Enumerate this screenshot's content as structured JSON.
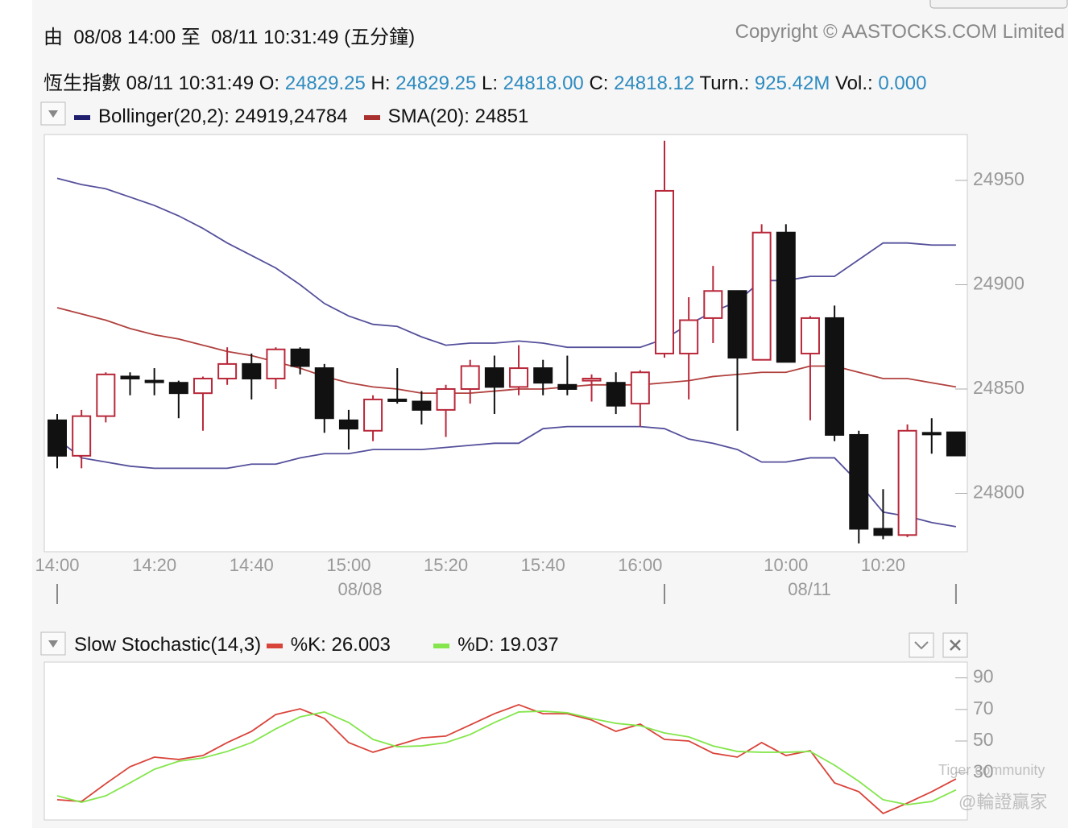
{
  "header": {
    "range": "由  08/08 14:00 至  08/11 10:31:49 (五分鐘)",
    "copyright": "Copyright © AASTOCKS.COM Limited",
    "quote": {
      "name": "恆生指數",
      "time": "08/11 10:31:49",
      "fields": [
        {
          "label": "O:",
          "value": "24829.25"
        },
        {
          "label": "H:",
          "value": "24829.25"
        },
        {
          "label": "L:",
          "value": "24818.00"
        },
        {
          "label": "C:",
          "value": "24818.12"
        },
        {
          "label": "Turn.:",
          "value": "925.42M"
        },
        {
          "label": "Vol.:",
          "value": "0.000"
        }
      ]
    }
  },
  "chart_data": [
    {
      "type": "candlestick",
      "legend": [
        {
          "text": "Bollinger(20,2): 24919,24784",
          "color": "#1f1f6e"
        },
        {
          "text": "SMA(20): 24851",
          "color": "#a8302e"
        }
      ],
      "categories": [
        "14:00",
        null,
        null,
        null,
        "14:20",
        null,
        null,
        null,
        "14:40",
        null,
        null,
        null,
        "15:00",
        null,
        null,
        null,
        "15:20",
        null,
        null,
        null,
        "15:40",
        null,
        null,
        null,
        "16:00",
        null,
        null,
        null,
        null,
        null,
        "10:00",
        null,
        null,
        null,
        "10:20",
        null,
        null,
        null
      ],
      "date_labels": [
        "08/08",
        "08/11"
      ],
      "open": [
        24835,
        24818,
        24837,
        24856,
        24854,
        24853,
        24848,
        24855,
        24862,
        24855,
        24869,
        24860,
        24835,
        24830,
        24845,
        24844,
        24840,
        24850,
        24860,
        24851,
        24860,
        24852,
        24854,
        24853,
        24843,
        24867,
        24867,
        24884,
        24897,
        24864,
        24925,
        24867,
        24884,
        24828,
        24783,
        24780,
        24829,
        24829.25
      ],
      "high": [
        24838,
        24840,
        24858,
        24858,
        24860,
        24854,
        24856,
        24870,
        24867,
        24870,
        24870,
        24862,
        24840,
        24847,
        24860,
        24849,
        24852,
        24864,
        24866,
        24871,
        24864,
        24866,
        24857,
        24858,
        24859,
        24969,
        24894,
        24909,
        24897,
        24929,
        24929,
        24885,
        24890,
        24830,
        24802,
        24833,
        24836,
        24829.25
      ],
      "low": [
        24812,
        24812,
        24834,
        24847,
        24847,
        24836,
        24830,
        24852,
        24845,
        24850,
        24857,
        24829,
        24821,
        24825,
        24843,
        24833,
        24827,
        24843,
        24838,
        24847,
        24847,
        24847,
        24844,
        24838,
        24832,
        24865,
        24845,
        24872,
        24830,
        24864,
        24863,
        24835,
        24825,
        24776,
        24778,
        24779,
        24819,
        24818.0
      ],
      "close": [
        24818,
        24837,
        24857,
        24855,
        24854,
        24848,
        24855,
        24862,
        24855,
        24869,
        24861,
        24836,
        24831,
        24845,
        24845,
        24840,
        24850,
        24861,
        24851,
        24860,
        24853,
        24850,
        24855,
        24842,
        24858,
        24945,
        24883,
        24897,
        24865,
        24925,
        24863,
        24884,
        24828,
        24783,
        24780,
        24830,
        24829,
        24818.12
      ],
      "up_color": "#b8283a",
      "down_color": "#111111",
      "series": [
        {
          "name": "Bollinger upper",
          "color": "#55509b",
          "values": [
            24951,
            24948,
            24946,
            24942,
            24938,
            24933,
            24927,
            24920,
            24914,
            24908,
            24900,
            24891,
            24885,
            24881,
            24880,
            24875,
            24871,
            24872,
            24872,
            24873,
            24872,
            24870,
            24870,
            24870,
            24870,
            24874,
            24881,
            24887,
            24892,
            24902,
            24902,
            24904,
            24904,
            24912,
            24920,
            24920,
            24919,
            24919
          ]
        },
        {
          "name": "Bollinger lower",
          "color": "#55509b",
          "values": [
            24826,
            24817,
            24815,
            24813,
            24812,
            24812,
            24812,
            24812,
            24814,
            24814,
            24817,
            24819,
            24819,
            24821,
            24821,
            24821,
            24822,
            24823,
            24824,
            24824,
            24831,
            24832,
            24832,
            24832,
            24832,
            24831,
            24826,
            24824,
            24821,
            24815,
            24815,
            24817,
            24817,
            24805,
            24791,
            24789,
            24786,
            24784
          ]
        },
        {
          "name": "SMA(20)",
          "color": "#b0413e",
          "values": [
            24889,
            24886,
            24883,
            24879,
            24876,
            24874,
            24871,
            24868,
            24866,
            24863,
            24860,
            24856,
            24853,
            24851,
            24850,
            24848,
            24848,
            24848,
            24849,
            24850,
            24850,
            24851,
            24852,
            24852,
            24852,
            24853,
            24854,
            24856,
            24857,
            24858,
            24858,
            24861,
            24861,
            24858,
            24855,
            24855,
            24853,
            24851
          ]
        }
      ],
      "ylim": [
        24772,
        24972
      ],
      "yticks": [
        24800,
        24850,
        24900,
        24950
      ]
    },
    {
      "type": "line",
      "title": "Slow Stochastic(14,3)",
      "series": [
        {
          "name": "%K: 26.003",
          "color": "#d9443a",
          "values": [
            12.8,
            11.7,
            23.0,
            33.7,
            39.8,
            38.3,
            40.8,
            49.0,
            56.1,
            66.8,
            70.4,
            64.3,
            49.0,
            42.9,
            47.4,
            52.0,
            53.1,
            60.2,
            67.3,
            73.0,
            67.3,
            67.3,
            63.3,
            56.1,
            60.7,
            51.0,
            50.0,
            42.3,
            39.8,
            49.0,
            40.8,
            43.9,
            23.5,
            17.9,
            4.1,
            10.7,
            17.9,
            26.003
          ]
        },
        {
          "name": "%D: 19.037",
          "color": "#84e64c",
          "values": [
            15.3,
            11.2,
            15.3,
            23.5,
            32.1,
            37.2,
            39.3,
            43.4,
            49.0,
            57.7,
            65.3,
            68.4,
            61.7,
            51.0,
            46.4,
            46.9,
            49.0,
            54.1,
            61.7,
            68.4,
            68.9,
            67.9,
            64.3,
            61.2,
            59.7,
            55.1,
            52.6,
            46.9,
            43.4,
            42.9,
            42.9,
            43.4,
            34.7,
            24.5,
            12.8,
            9.7,
            11.7,
            19.037
          ]
        }
      ],
      "ylim": [
        0,
        100
      ],
      "yticks": [
        30,
        50,
        70,
        90
      ],
      "watermarks": [
        "Tiger community",
        "@輪證贏家"
      ]
    }
  ]
}
